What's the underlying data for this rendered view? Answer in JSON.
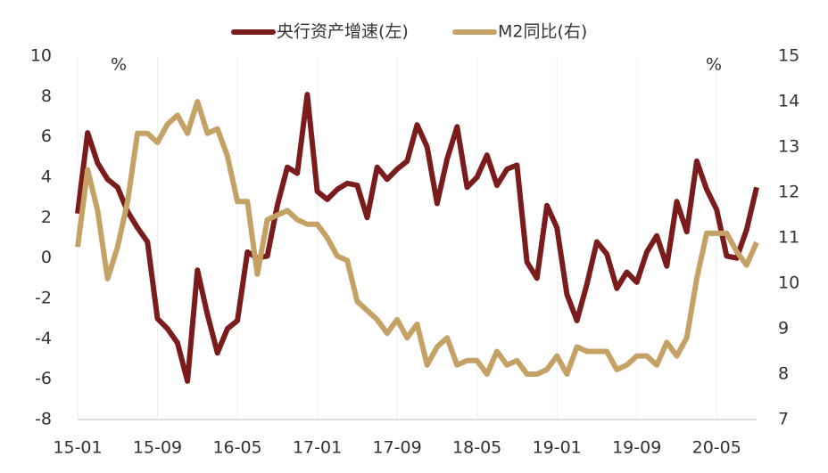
{
  "chart_data": {
    "type": "line",
    "annotations": [
      "%",
      "%"
    ],
    "categories": [
      "15-01",
      null,
      null,
      null,
      null,
      null,
      null,
      null,
      "15-09",
      null,
      null,
      null,
      null,
      null,
      null,
      null,
      "16-05",
      null,
      null,
      null,
      null,
      null,
      null,
      null,
      "17-01",
      null,
      null,
      null,
      null,
      null,
      null,
      null,
      "17-09",
      null,
      null,
      null,
      null,
      null,
      null,
      null,
      "18-05",
      null,
      null,
      null,
      null,
      null,
      null,
      null,
      "19-01",
      null,
      null,
      null,
      null,
      null,
      null,
      null,
      "19-09",
      null,
      null,
      null,
      null,
      null,
      null,
      null,
      "20-05",
      null,
      null,
      null,
      null
    ],
    "series": [
      {
        "name": "央行资产增速(左)",
        "color": "#7b1c1c",
        "axis": "y",
        "values": [
          2.2,
          6.2,
          4.7,
          3.9,
          3.5,
          2.3,
          1.5,
          0.8,
          -3.0,
          -3.5,
          -4.2,
          -6.1,
          -0.6,
          -2.8,
          -4.7,
          -3.5,
          -3.1,
          0.3,
          0.0,
          0.1,
          2.6,
          4.5,
          4.2,
          8.1,
          3.3,
          2.9,
          3.4,
          3.7,
          3.6,
          2.0,
          4.5,
          3.9,
          4.4,
          4.8,
          6.6,
          5.5,
          2.7,
          4.9,
          6.5,
          3.5,
          4.0,
          5.1,
          3.6,
          4.4,
          4.6,
          -0.2,
          -1.0,
          2.6,
          1.5,
          -1.8,
          -3.1,
          -1.3,
          0.8,
          0.2,
          -1.5,
          -0.7,
          -1.2,
          0.3,
          1.1,
          -0.4,
          2.8,
          1.3,
          4.8,
          3.4,
          2.4,
          0.1,
          0.0,
          1.4,
          3.5
        ]
      },
      {
        "name": "M2同比(右)",
        "color": "#c4a265",
        "axis": "y2",
        "values": [
          10.8,
          12.5,
          11.6,
          10.1,
          10.8,
          11.8,
          13.3,
          13.3,
          13.1,
          13.5,
          13.7,
          13.3,
          14.0,
          13.3,
          13.4,
          12.8,
          11.8,
          11.8,
          10.2,
          11.4,
          11.5,
          11.6,
          11.4,
          11.3,
          11.3,
          11.0,
          10.6,
          10.5,
          9.6,
          9.4,
          9.2,
          8.9,
          9.2,
          8.8,
          9.1,
          8.2,
          8.6,
          8.8,
          8.2,
          8.3,
          8.3,
          8.0,
          8.5,
          8.2,
          8.3,
          8.0,
          8.0,
          8.1,
          8.4,
          8.0,
          8.6,
          8.5,
          8.5,
          8.5,
          8.1,
          8.2,
          8.4,
          8.4,
          8.2,
          8.7,
          8.4,
          8.8,
          10.1,
          11.1,
          11.1,
          11.1,
          10.7,
          10.4,
          10.9
        ]
      }
    ],
    "ylim": [
      -8,
      10
    ],
    "yticks": [
      -8,
      -6,
      -4,
      -2,
      0,
      2,
      4,
      6,
      8,
      10
    ],
    "y2lim": [
      7,
      15
    ],
    "y2ticks": [
      7,
      8,
      9,
      10,
      11,
      12,
      13,
      14,
      15
    ],
    "grid": true,
    "legend": "top"
  }
}
